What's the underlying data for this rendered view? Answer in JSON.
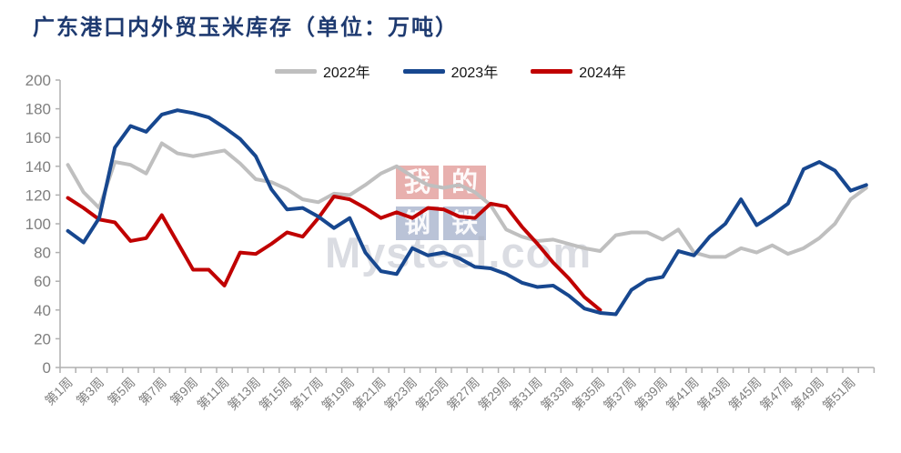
{
  "title": "广东港口内外贸玉米库存（单位：万吨）",
  "watermark": {
    "chars": [
      "我",
      "的",
      "钢",
      "铁"
    ],
    "text": "Mysteel.com"
  },
  "chart_data": {
    "type": "line",
    "title": "广东港口内外贸玉米库存（单位：万吨）",
    "xlabel": "",
    "ylabel": "",
    "ylim": [
      0,
      200
    ],
    "ytick_step": 20,
    "y_ticks": [
      0,
      20,
      40,
      60,
      80,
      100,
      120,
      140,
      160,
      180,
      200
    ],
    "weeks_total": 52,
    "x_labels": [
      "第1周",
      "第3周",
      "第5周",
      "第7周",
      "第9周",
      "第11周",
      "第13周",
      "第15周",
      "第17周",
      "第19周",
      "第21周",
      "第23周",
      "第25周",
      "第27周",
      "第29周",
      "第31周",
      "第33周",
      "第35周",
      "第37周",
      "第39周",
      "第41周",
      "第43周",
      "第45周",
      "第47周",
      "第49周",
      "第51周"
    ],
    "grid": false,
    "legend_position": "top",
    "axis_color": "#b0b0b0",
    "label_color": "#7f7f7f",
    "title_color": "#1e3a70",
    "draw_order": [
      0,
      2,
      1
    ],
    "series": [
      {
        "name": "2022年",
        "color": "#bfbfbf",
        "values": [
          141,
          122,
          111,
          143,
          141,
          135,
          156,
          149,
          147,
          149,
          151,
          142,
          131,
          129,
          124,
          117,
          115,
          121,
          120,
          127,
          135,
          140,
          133,
          127,
          125,
          127,
          122,
          113,
          96,
          91,
          88,
          89,
          86,
          83,
          81,
          92,
          94,
          94,
          89,
          96,
          80,
          77,
          77,
          83,
          80,
          85,
          79,
          83,
          90,
          100,
          117,
          125
        ]
      },
      {
        "name": "2023年",
        "color": "#17478f",
        "values": [
          95,
          87,
          104,
          153,
          168,
          164,
          176,
          179,
          177,
          174,
          167,
          159,
          147,
          124,
          110,
          111,
          105,
          97,
          104,
          80,
          67,
          65,
          83,
          78,
          80,
          76,
          70,
          69,
          65,
          59,
          56,
          57,
          50,
          41,
          38,
          37,
          54,
          61,
          63,
          81,
          78,
          91,
          100,
          117,
          99,
          106,
          114,
          138,
          143,
          137,
          123,
          127
        ]
      },
      {
        "name": "2024年",
        "color": "#c00000",
        "values": [
          118,
          111,
          103,
          101,
          88,
          90,
          106,
          87,
          68,
          68,
          57,
          80,
          79,
          86,
          94,
          91,
          104,
          119,
          117,
          111,
          104,
          108,
          104,
          111,
          110,
          105,
          104,
          114,
          112,
          98,
          86,
          73,
          62,
          49,
          40
        ]
      }
    ]
  }
}
